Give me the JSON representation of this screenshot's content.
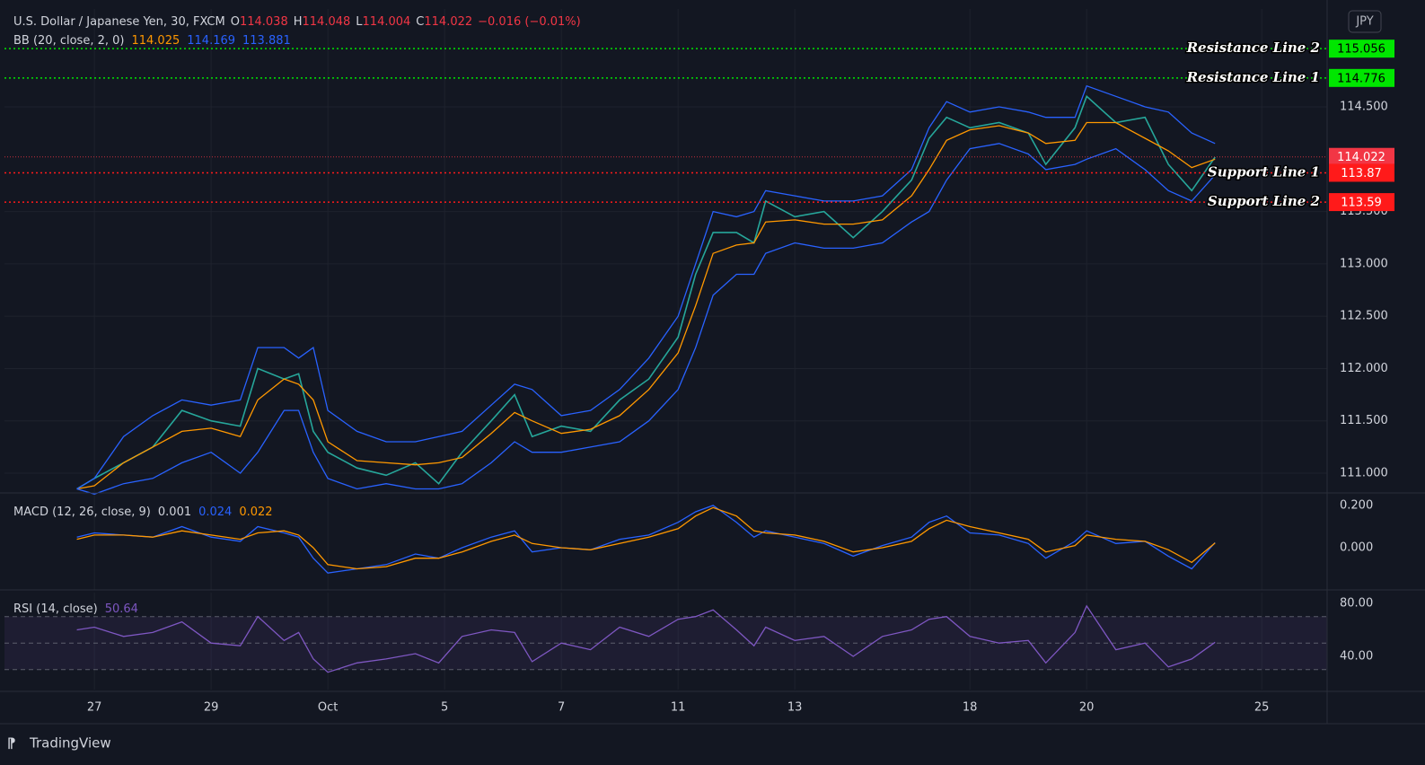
{
  "header": {
    "title": "U.S. Dollar / Japanese Yen, 30, FXCM",
    "ohlc": [
      {
        "label": "O",
        "value": 114.038
      },
      {
        "label": "H",
        "value": 114.048
      },
      {
        "label": "L",
        "value": 114.004
      },
      {
        "label": "C",
        "value": 114.022
      }
    ],
    "change": "−0.016 (−0.01%)",
    "currency": "JPY",
    "brand": "TradingView"
  },
  "chart_data": [
    {
      "type": "line",
      "indicator": "BB (20, close, 2, 0)",
      "legend_values": [
        {
          "value": 114.025,
          "color": "#ff9800"
        },
        {
          "value": 114.169,
          "color": "#2962ff"
        },
        {
          "value": 113.881,
          "color": "#2962ff"
        }
      ],
      "x": [
        -0.3,
        0,
        0.5,
        1,
        1.5,
        2,
        2.5,
        2.8,
        3.25,
        3.5,
        3.75,
        4,
        4.5,
        5,
        5.5,
        5.9,
        6.3,
        6.8,
        7.2,
        7.5,
        8,
        8.5,
        9,
        9.5,
        10,
        10.3,
        10.6,
        11,
        11.3,
        11.5,
        12,
        12.5,
        13,
        13.5,
        14,
        14.3,
        14.6,
        15,
        15.5,
        16,
        16.3,
        16.8,
        17,
        17.5,
        18,
        18.4,
        18.8,
        19.2
      ],
      "series": [
        {
          "color": "#26a69a",
          "values": [
            110.85,
            110.95,
            111.1,
            111.25,
            111.6,
            111.5,
            111.45,
            112.0,
            111.9,
            111.95,
            111.4,
            111.2,
            111.05,
            110.98,
            111.1,
            110.9,
            111.2,
            111.5,
            111.75,
            111.35,
            111.45,
            111.4,
            111.7,
            111.9,
            112.3,
            112.9,
            113.3,
            113.3,
            113.2,
            113.6,
            113.45,
            113.5,
            113.25,
            113.5,
            113.8,
            114.2,
            114.4,
            114.3,
            114.35,
            114.25,
            113.95,
            114.3,
            114.6,
            114.35,
            114.4,
            113.95,
            113.7,
            114.02
          ]
        },
        {
          "color": "#ff9800",
          "values": [
            110.85,
            110.88,
            111.1,
            111.25,
            111.4,
            111.43,
            111.35,
            111.7,
            111.9,
            111.85,
            111.7,
            111.3,
            111.12,
            111.1,
            111.08,
            111.1,
            111.15,
            111.38,
            111.58,
            111.5,
            111.38,
            111.42,
            111.55,
            111.8,
            112.15,
            112.6,
            113.1,
            113.18,
            113.2,
            113.4,
            113.42,
            113.38,
            113.38,
            113.42,
            113.65,
            113.9,
            114.18,
            114.28,
            114.32,
            114.25,
            114.15,
            114.18,
            114.35,
            114.35,
            114.2,
            114.08,
            113.92,
            114.0
          ]
        },
        {
          "color": "#2962ff",
          "values": [
            110.85,
            110.95,
            111.35,
            111.55,
            111.7,
            111.65,
            111.7,
            112.2,
            112.2,
            112.1,
            112.2,
            111.6,
            111.4,
            111.3,
            111.3,
            111.35,
            111.4,
            111.65,
            111.85,
            111.8,
            111.55,
            111.6,
            111.8,
            112.1,
            112.5,
            113.0,
            113.5,
            113.45,
            113.5,
            113.7,
            113.65,
            113.6,
            113.6,
            113.65,
            113.9,
            114.3,
            114.55,
            114.45,
            114.5,
            114.45,
            114.4,
            114.4,
            114.7,
            114.6,
            114.5,
            114.45,
            114.25,
            114.15
          ]
        },
        {
          "color": "#2962ff",
          "values": [
            110.85,
            110.8,
            110.9,
            110.95,
            111.1,
            111.2,
            111.0,
            111.2,
            111.6,
            111.6,
            111.2,
            110.95,
            110.85,
            110.9,
            110.85,
            110.85,
            110.9,
            111.1,
            111.3,
            111.2,
            111.2,
            111.25,
            111.3,
            111.5,
            111.8,
            112.2,
            112.7,
            112.9,
            112.9,
            113.1,
            113.2,
            113.15,
            113.15,
            113.2,
            113.4,
            113.5,
            113.8,
            114.1,
            114.15,
            114.05,
            113.9,
            113.95,
            114.0,
            114.1,
            113.9,
            113.7,
            113.6,
            113.85
          ]
        }
      ],
      "xlim": [
        -1.54,
        21.12
      ],
      "xticks": [
        {
          "value": 0,
          "label": "27"
        },
        {
          "value": 2,
          "label": "29"
        },
        {
          "value": 4,
          "label": "Oct"
        },
        {
          "value": 6,
          "label": "5"
        },
        {
          "value": 8,
          "label": "7"
        },
        {
          "value": 10,
          "label": "11"
        },
        {
          "value": 12,
          "label": "13"
        },
        {
          "value": 15,
          "label": "18"
        },
        {
          "value": 17,
          "label": "20"
        },
        {
          "value": 20,
          "label": "25"
        }
      ],
      "ylim": [
        110.82,
        115.435
      ],
      "yticks": [
        {
          "value": 111,
          "label": "111.000"
        },
        {
          "value": 111.5,
          "label": "111.500"
        },
        {
          "value": 112,
          "label": "112.000"
        },
        {
          "value": 112.5,
          "label": "112.500"
        },
        {
          "value": 113,
          "label": "113.000"
        },
        {
          "value": 113.5,
          "label": "113.500"
        },
        {
          "value": 114.5,
          "label": "114.500"
        }
      ],
      "grid": true,
      "last": {
        "value": 114.022,
        "color": "#f23645"
      },
      "levels": [
        {
          "label": "Resistance Line 2",
          "value": 115.056,
          "color": "#00e600"
        },
        {
          "label": "Resistance Line 1",
          "value": 114.776,
          "color": "#00e600"
        },
        {
          "label": "Support Line 1",
          "value": 113.87,
          "color": "#ff1a1a"
        },
        {
          "label": "Support Line 2",
          "value": 113.59,
          "color": "#ff1a1a"
        }
      ]
    },
    {
      "type": "line",
      "indicator": "MACD (12, 26, close, 9)",
      "legend_values": [
        {
          "value": 0.001,
          "color": "#d1d4dc"
        },
        {
          "value": 0.024,
          "color": "#2962ff"
        },
        {
          "value": 0.022,
          "color": "#ff9800"
        }
      ],
      "x": [
        -0.3,
        0,
        0.5,
        1,
        1.5,
        2,
        2.5,
        2.8,
        3.25,
        3.5,
        3.75,
        4,
        4.5,
        5,
        5.5,
        5.9,
        6.3,
        6.8,
        7.2,
        7.5,
        8,
        8.5,
        9,
        9.5,
        10,
        10.3,
        10.6,
        11,
        11.3,
        11.5,
        12,
        12.5,
        13,
        13.5,
        14,
        14.3,
        14.6,
        15,
        15.5,
        16,
        16.3,
        16.8,
        17,
        17.5,
        18,
        18.4,
        18.8,
        19.2
      ],
      "series": [
        {
          "color": "#2962ff",
          "values": [
            0.05,
            0.07,
            0.06,
            0.05,
            0.1,
            0.05,
            0.03,
            0.1,
            0.07,
            0.05,
            -0.05,
            -0.12,
            -0.1,
            -0.08,
            -0.03,
            -0.05,
            0.0,
            0.05,
            0.08,
            -0.02,
            0.0,
            -0.01,
            0.04,
            0.06,
            0.12,
            0.17,
            0.2,
            0.12,
            0.05,
            0.08,
            0.05,
            0.02,
            -0.04,
            0.01,
            0.05,
            0.12,
            0.15,
            0.07,
            0.06,
            0.02,
            -0.05,
            0.03,
            0.08,
            0.02,
            0.03,
            -0.04,
            -0.1,
            0.024
          ]
        },
        {
          "color": "#ff9800",
          "values": [
            0.04,
            0.06,
            0.06,
            0.05,
            0.08,
            0.06,
            0.04,
            0.07,
            0.08,
            0.06,
            0.0,
            -0.08,
            -0.1,
            -0.09,
            -0.05,
            -0.05,
            -0.02,
            0.03,
            0.06,
            0.02,
            0.0,
            -0.01,
            0.02,
            0.05,
            0.09,
            0.15,
            0.19,
            0.15,
            0.08,
            0.07,
            0.06,
            0.03,
            -0.02,
            0.0,
            0.03,
            0.09,
            0.13,
            0.1,
            0.07,
            0.04,
            -0.02,
            0.01,
            0.06,
            0.04,
            0.03,
            -0.01,
            -0.07,
            0.022
          ]
        }
      ],
      "xlim": [
        -1.54,
        21.12
      ],
      "ylim": [
        -0.2,
        0.255
      ],
      "yticks": [
        {
          "value": 0.2,
          "label": "0.200"
        },
        {
          "value": 0,
          "label": "0.000"
        }
      ]
    },
    {
      "type": "line",
      "indicator": "RSI (14, close)",
      "legend_values": [
        {
          "value": 50.64,
          "color": "#7e57c2"
        }
      ],
      "x": [
        -0.3,
        0,
        0.5,
        1,
        1.5,
        2,
        2.5,
        2.8,
        3.25,
        3.5,
        3.75,
        4,
        4.5,
        5,
        5.5,
        5.9,
        6.3,
        6.8,
        7.2,
        7.5,
        8,
        8.5,
        9,
        9.5,
        10,
        10.3,
        10.6,
        11,
        11.3,
        11.5,
        12,
        12.5,
        13,
        13.5,
        14,
        14.3,
        14.6,
        15,
        15.5,
        16,
        16.3,
        16.8,
        17,
        17.5,
        18,
        18.4,
        18.8,
        19.2
      ],
      "series": [
        {
          "color": "#7e57c2",
          "values": [
            60,
            62,
            55,
            58,
            66,
            50,
            48,
            70,
            52,
            58,
            38,
            28,
            35,
            38,
            42,
            35,
            55,
            60,
            58,
            36,
            50,
            45,
            62,
            55,
            68,
            70,
            75,
            60,
            48,
            62,
            52,
            55,
            40,
            55,
            60,
            68,
            70,
            55,
            50,
            52,
            35,
            58,
            78,
            45,
            50,
            32,
            38,
            50.64
          ]
        }
      ],
      "xlim": [
        -1.54,
        21.12
      ],
      "ylim": [
        14.9,
        88.1
      ],
      "yticks": [
        {
          "value": 80,
          "label": "80.00"
        },
        {
          "value": 40,
          "label": "40.00"
        }
      ],
      "levels": [
        70,
        50,
        30
      ]
    }
  ]
}
